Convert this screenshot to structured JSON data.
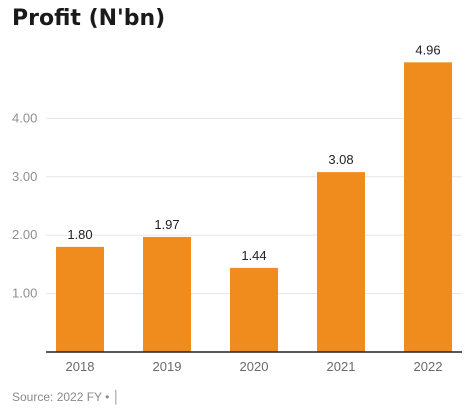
{
  "source": "Source: 2022 FY • │",
  "colors": {
    "bar": "#f08c1e",
    "grid": "#e6e6e6",
    "axis": "#222222"
  },
  "chart_data": {
    "type": "bar",
    "title": "Profit (N'bn)",
    "xlabel": "",
    "ylabel": "",
    "categories": [
      "2018",
      "2019",
      "2020",
      "2021",
      "2022"
    ],
    "values": [
      1.8,
      1.97,
      1.44,
      3.08,
      4.96
    ],
    "value_labels": [
      "1.80",
      "1.97",
      "1.44",
      "3.08",
      "4.96"
    ],
    "ylim": [
      0,
      5.0
    ],
    "yticks": [
      1.0,
      2.0,
      3.0,
      4.0
    ],
    "ytick_labels": [
      "1.00",
      "2.00",
      "3.00",
      "4.00"
    ],
    "grid": true,
    "legend": "none"
  }
}
